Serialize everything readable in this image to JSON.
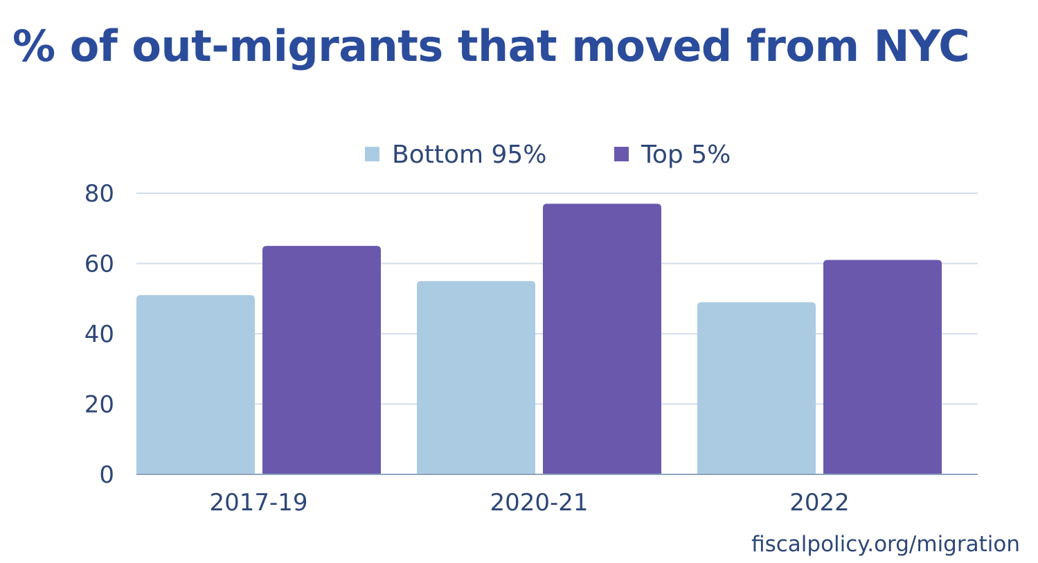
{
  "chart_data": {
    "type": "bar",
    "title": "% of out-migrants that moved from NYC",
    "xlabel": "",
    "ylabel": "",
    "categories": [
      "2017-19",
      "2020-21",
      "2022"
    ],
    "series": [
      {
        "name": "Bottom 95%",
        "color": "#abcbe2",
        "values": [
          51,
          55,
          49
        ]
      },
      {
        "name": "Top 5%",
        "color": "#6a58ad",
        "values": [
          65,
          77,
          61
        ]
      }
    ],
    "ylim": [
      0,
      80
    ],
    "yticks": [
      0,
      20,
      40,
      60,
      80
    ],
    "grid": true,
    "legend": "top-center"
  },
  "source": "fiscalpolicy.org/migration"
}
